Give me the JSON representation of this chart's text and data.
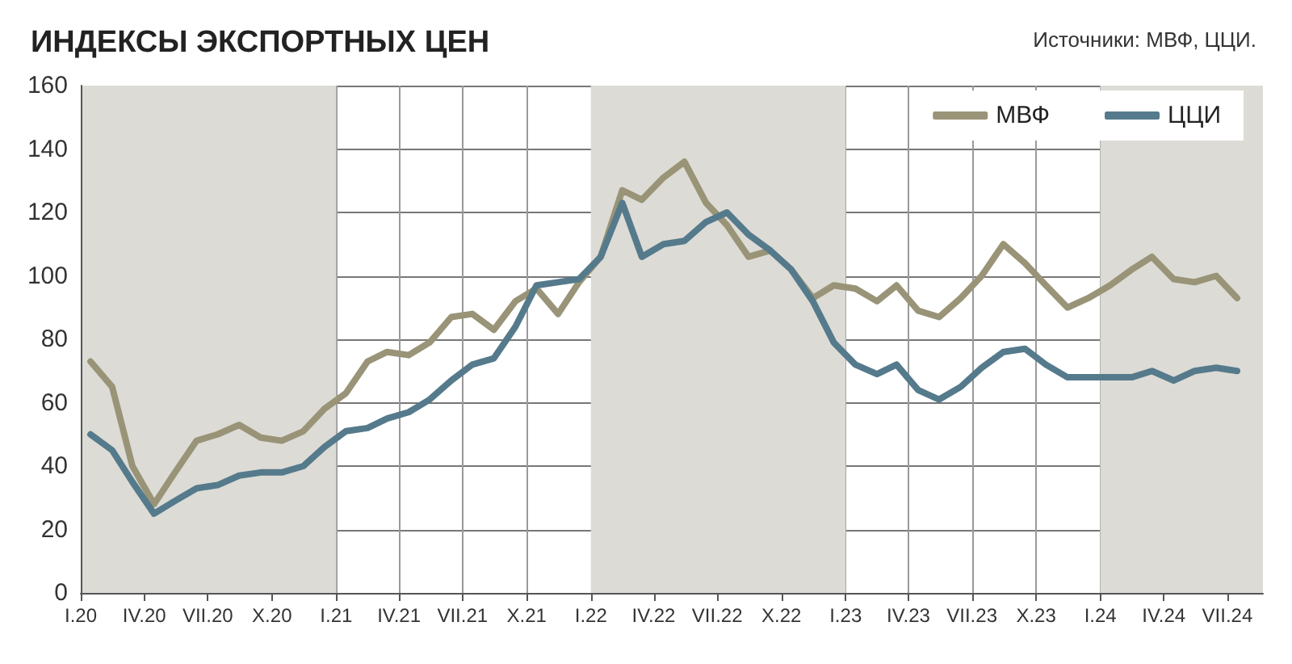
{
  "chart_data": {
    "type": "line",
    "title": "ИНДЕКСЫ ЭКСПОРТНЫХ ЦЕН",
    "annotations": [
      "Источники: МВФ, ЦЦИ."
    ],
    "x": [
      "2020-01-15",
      "2020-02-15",
      "2020-03-15",
      "2020-04-15",
      "2020-05-15",
      "2020-06-15",
      "2020-07-15",
      "2020-08-15",
      "2020-09-15",
      "2020-10-15",
      "2020-11-15",
      "2020-12-15",
      "2021-01-15",
      "2021-02-15",
      "2021-03-15",
      "2021-04-15",
      "2021-05-15",
      "2021-06-15",
      "2021-07-15",
      "2021-08-15",
      "2021-09-15",
      "2021-10-15",
      "2021-11-15",
      "2021-12-15",
      "2022-01-15",
      "2022-02-15",
      "2022-03-15",
      "2022-04-15",
      "2022-05-15",
      "2022-06-15",
      "2022-07-15",
      "2022-08-15",
      "2022-09-15",
      "2022-10-15",
      "2022-11-15",
      "2022-12-15",
      "2023-01-15",
      "2023-02-15",
      "2023-03-15",
      "2023-04-15",
      "2023-05-15",
      "2023-06-15",
      "2023-07-15",
      "2023-08-15",
      "2023-09-15",
      "2023-10-15",
      "2023-11-15",
      "2023-12-15",
      "2024-01-15",
      "2024-02-15",
      "2024-03-15",
      "2024-04-15",
      "2024-05-15",
      "2024-06-15",
      "2024-07-15"
    ],
    "series": [
      {
        "name": "МВФ",
        "color": "#999477",
        "values": [
          73,
          65,
          40,
          28,
          38,
          48,
          50,
          53,
          49,
          48,
          51,
          58,
          63,
          73,
          76,
          75,
          79,
          87,
          88,
          83,
          92,
          96,
          88,
          98,
          106,
          127,
          124,
          131,
          136,
          123,
          116,
          106,
          108,
          102,
          93,
          97,
          96,
          92,
          97,
          89,
          87,
          93,
          100,
          110,
          104,
          97,
          90,
          93,
          97,
          102,
          106,
          99,
          98,
          100,
          93
        ]
      },
      {
        "name": "ЦЦИ",
        "color": "#557a8c",
        "values": [
          50,
          45,
          35,
          25,
          29,
          33,
          34,
          37,
          38,
          38,
          40,
          46,
          51,
          52,
          55,
          57,
          61,
          67,
          72,
          74,
          84,
          97,
          98,
          99,
          106,
          123,
          106,
          110,
          111,
          117,
          120,
          113,
          108,
          102,
          92,
          79,
          72,
          69,
          72,
          64,
          61,
          65,
          71,
          76,
          77,
          72,
          68,
          68,
          68,
          68,
          70,
          67,
          70,
          71,
          70
        ]
      }
    ],
    "xlim": [
      "2020-01",
      "2024-08-21"
    ],
    "xticks": [
      {
        "value": "2020-01",
        "label": "I.20"
      },
      {
        "value": "2020-04",
        "label": "IV.20"
      },
      {
        "value": "2020-07",
        "label": "VII.20"
      },
      {
        "value": "2020-10",
        "label": "X.20"
      },
      {
        "value": "2021-01",
        "label": "I.21"
      },
      {
        "value": "2021-04",
        "label": "IV.21"
      },
      {
        "value": "2021-07",
        "label": "VII.21"
      },
      {
        "value": "2021-10",
        "label": "X.21"
      },
      {
        "value": "2022-01",
        "label": "I.22"
      },
      {
        "value": "2022-04",
        "label": "IV.22"
      },
      {
        "value": "2022-07",
        "label": "VII.22"
      },
      {
        "value": "2022-10",
        "label": "X.22"
      },
      {
        "value": "2023-01",
        "label": "I.23"
      },
      {
        "value": "2023-04",
        "label": "IV.23"
      },
      {
        "value": "2023-07",
        "label": "VII.23"
      },
      {
        "value": "2023-10",
        "label": "X.23"
      },
      {
        "value": "2024-01",
        "label": "I.24"
      },
      {
        "value": "2024-04",
        "label": "IV.24"
      },
      {
        "value": "2024-07",
        "label": "VII.24"
      }
    ],
    "ylim": [
      0,
      160
    ],
    "yticks": [
      0,
      20,
      40,
      60,
      80,
      100,
      120,
      140,
      160
    ],
    "bands": [
      {
        "axis": "x",
        "from": "2020-01",
        "to": "2021-01",
        "color": "#dcdbd5"
      },
      {
        "axis": "x",
        "from": "2022-01",
        "to": "2023-01",
        "color": "#dcdbd5"
      },
      {
        "axis": "x",
        "from": "2024-01",
        "to": "2024-08-21",
        "color": "#dcdbd5"
      }
    ],
    "grid": true,
    "legend": "top right",
    "marker": "none",
    "line_style": "solid"
  }
}
